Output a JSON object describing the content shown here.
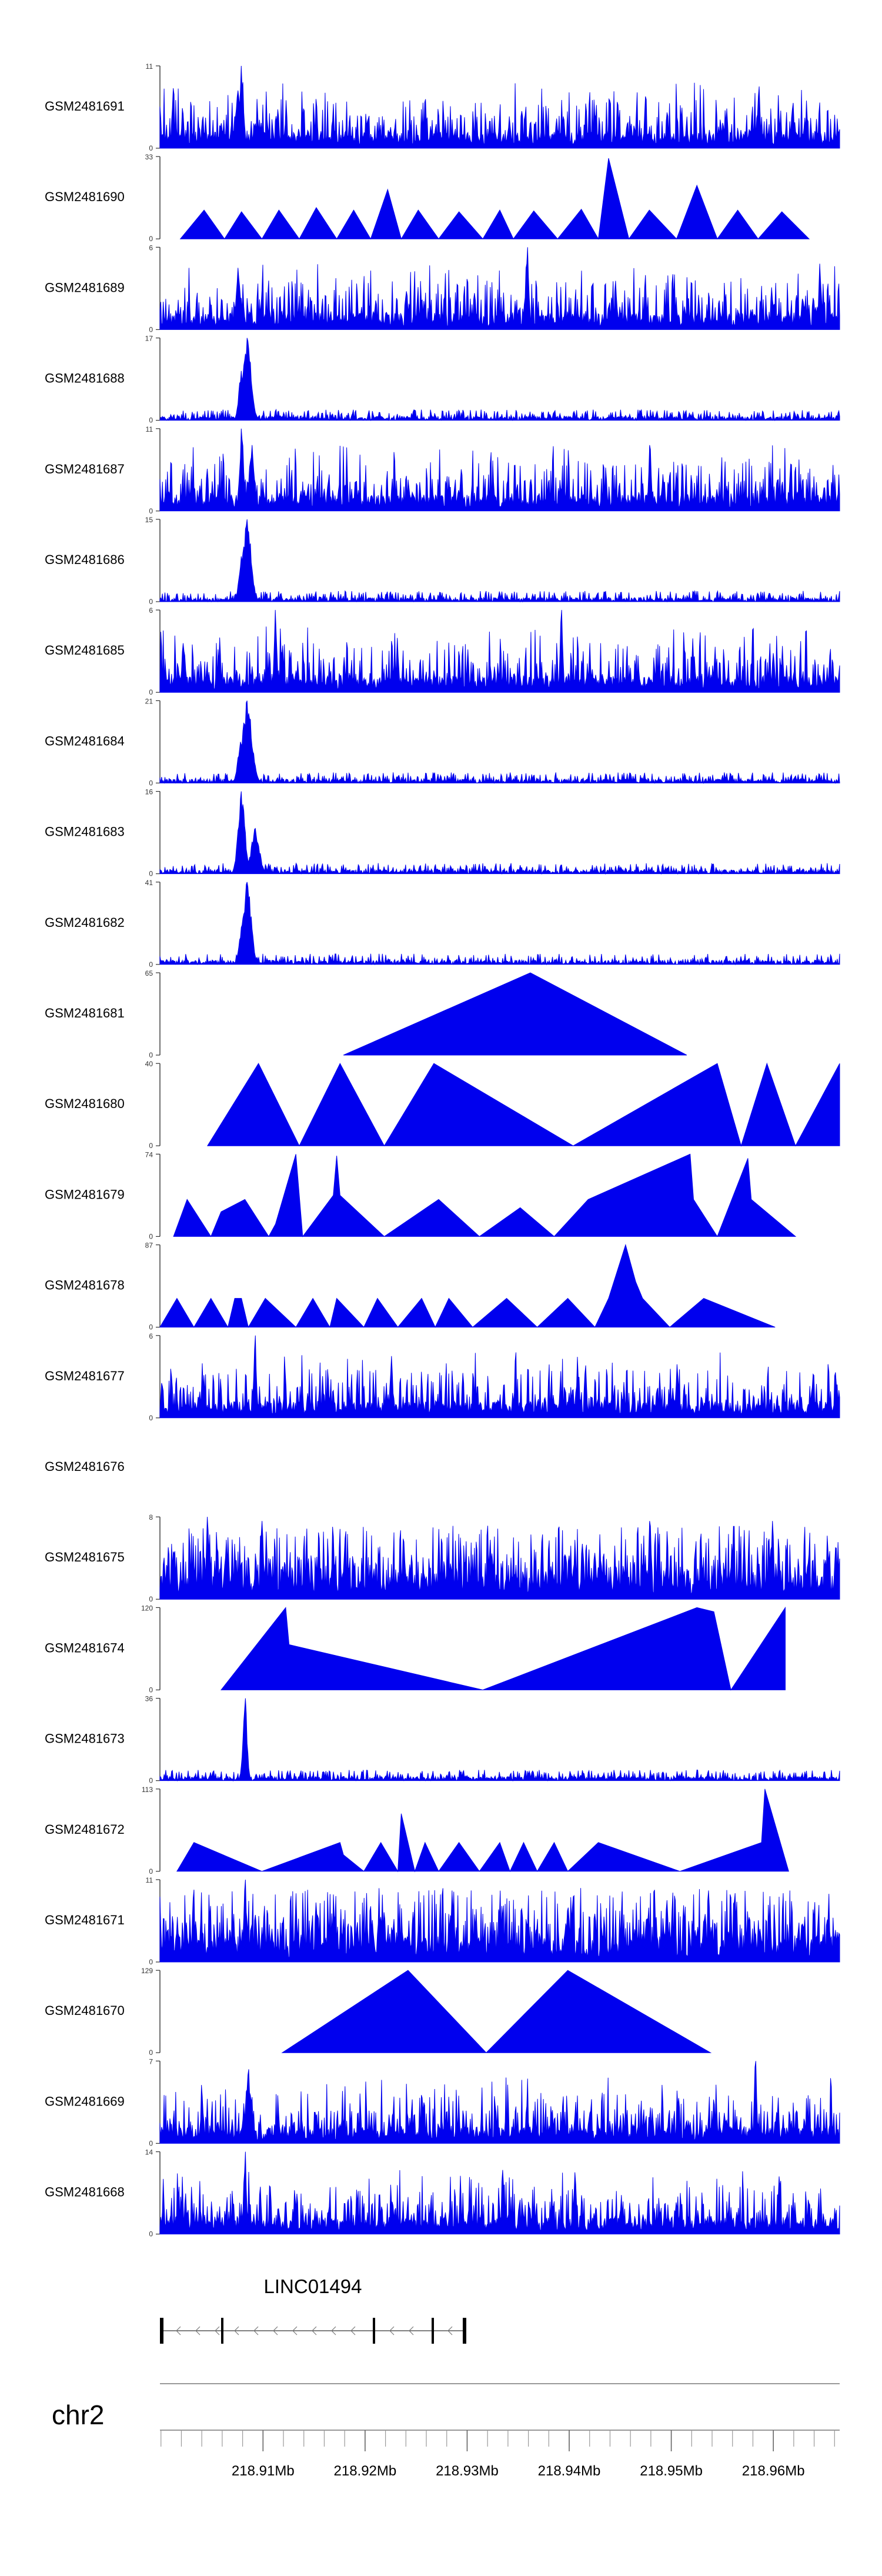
{
  "chart_data": {
    "type": "area",
    "genome": {
      "chromosome": "chr2",
      "gene": "LINC01494",
      "ticks": [
        "218.91Mb",
        "218.92Mb",
        "218.93Mb",
        "218.94Mb",
        "218.95Mb",
        "218.96Mb"
      ],
      "tick_values": [
        218.91,
        218.92,
        218.93,
        218.94,
        218.95,
        218.96
      ],
      "xlim": [
        218.8999,
        218.9665
      ]
    },
    "colors": {
      "fill": "#0000EE",
      "axis": "#333333",
      "label": "#000000",
      "ideogram": "#999999"
    },
    "tracks": [
      {
        "name": "GSM2481691",
        "ymax": "11",
        "ymin": "0",
        "kind": "dense",
        "seed": 11,
        "peaks": [
          {
            "x": 0.12,
            "h": 1.0,
            "w": 0.003
          },
          {
            "x": 0.115,
            "h": 0.7,
            "w": 0.004
          },
          {
            "x": 0.88,
            "h": 0.75,
            "w": 0.002
          },
          {
            "x": 0.93,
            "h": 0.55,
            "w": 0.002
          }
        ]
      },
      {
        "name": "GSM2481690",
        "ymax": "33",
        "ymin": "0",
        "kind": "tri",
        "x": [
          0.03,
          0.065,
          0.095,
          0.12,
          0.15,
          0.175,
          0.205,
          0.23,
          0.26,
          0.285,
          0.31,
          0.335,
          0.355,
          0.38,
          0.41,
          0.44,
          0.475,
          0.5,
          0.52,
          0.55,
          0.585,
          0.62,
          0.645,
          0.66,
          0.69,
          0.72,
          0.76,
          0.79,
          0.82,
          0.85,
          0.88,
          0.915,
          0.955
        ],
        "y": [
          0,
          0.35,
          0,
          0.33,
          0,
          0.35,
          0,
          0.38,
          0,
          0.35,
          0,
          0.6,
          0,
          0.35,
          0,
          0.33,
          0,
          0.35,
          0,
          0.34,
          0,
          0.36,
          0,
          0.98,
          0,
          0.35,
          0,
          0.65,
          0,
          0.35,
          0,
          0.33,
          0
        ]
      },
      {
        "name": "GSM2481689",
        "ymax": "6",
        "ymin": "0",
        "kind": "dense",
        "seed": 23,
        "peaks": [
          {
            "x": 0.54,
            "h": 1.0,
            "w": 0.002
          },
          {
            "x": 0.115,
            "h": 0.75,
            "w": 0.003
          },
          {
            "x": 0.97,
            "h": 0.8,
            "w": 0.002
          }
        ]
      },
      {
        "name": "GSM2481688",
        "ymax": "17",
        "ymin": "0",
        "kind": "sparse",
        "seed": 31,
        "peaks": [
          {
            "x": 0.128,
            "h": 1.0,
            "w": 0.006
          },
          {
            "x": 0.12,
            "h": 0.6,
            "w": 0.004
          }
        ]
      },
      {
        "name": "GSM2481687",
        "ymax": "11",
        "ymin": "0",
        "kind": "dense",
        "seed": 41,
        "peaks": [
          {
            "x": 0.12,
            "h": 1.0,
            "w": 0.003
          },
          {
            "x": 0.135,
            "h": 0.8,
            "w": 0.004
          },
          {
            "x": 0.72,
            "h": 0.8,
            "w": 0.002
          }
        ]
      },
      {
        "name": "GSM2481686",
        "ymax": "15",
        "ymin": "0",
        "kind": "sparse",
        "seed": 53,
        "peaks": [
          {
            "x": 0.128,
            "h": 1.0,
            "w": 0.006
          },
          {
            "x": 0.12,
            "h": 0.55,
            "w": 0.004
          }
        ]
      },
      {
        "name": "GSM2481685",
        "ymax": "6",
        "ymin": "0",
        "kind": "dense",
        "seed": 61,
        "peaks": [
          {
            "x": 0.17,
            "h": 1.0,
            "w": 0.002
          },
          {
            "x": 0.59,
            "h": 1.0,
            "w": 0.002
          },
          {
            "x": 0.035,
            "h": 0.5,
            "w": 0.003
          }
        ]
      },
      {
        "name": "GSM2481684",
        "ymax": "21",
        "ymin": "0",
        "kind": "sparse",
        "seed": 71,
        "peaks": [
          {
            "x": 0.128,
            "h": 1.0,
            "w": 0.007
          },
          {
            "x": 0.118,
            "h": 0.5,
            "w": 0.004
          }
        ]
      },
      {
        "name": "GSM2481683",
        "ymax": "16",
        "ymin": "0",
        "kind": "sparse",
        "seed": 83,
        "peaks": [
          {
            "x": 0.12,
            "h": 1.0,
            "w": 0.005
          },
          {
            "x": 0.14,
            "h": 0.55,
            "w": 0.006
          }
        ]
      },
      {
        "name": "GSM2481682",
        "ymax": "41",
        "ymin": "0",
        "kind": "sparse",
        "seed": 97,
        "peaks": [
          {
            "x": 0.128,
            "h": 1.0,
            "w": 0.006
          },
          {
            "x": 0.12,
            "h": 0.45,
            "w": 0.004
          }
        ]
      },
      {
        "name": "GSM2481681",
        "ymax": "65",
        "ymin": "0",
        "kind": "tri",
        "x": [
          0.27,
          0.545,
          0.775
        ],
        "y": [
          0,
          1.0,
          0
        ]
      },
      {
        "name": "GSM2481680",
        "ymax": "40",
        "ymin": "0",
        "kind": "tri",
        "x": [
          0.07,
          0.145,
          0.205,
          0.265,
          0.33,
          0.403,
          0.608,
          0.82,
          0.855,
          0.893,
          0.935,
          1.0
        ],
        "y": [
          0,
          1.0,
          0,
          1.0,
          0,
          1.0,
          0,
          1.0,
          0,
          1.0,
          0,
          1.0
        ]
      },
      {
        "name": "GSM2481679",
        "ymax": "74",
        "ymin": "0",
        "kind": "tri",
        "x": [
          0.02,
          0.04,
          0.075,
          0.09,
          0.125,
          0.16,
          0.17,
          0.2,
          0.21,
          0.255,
          0.26,
          0.265,
          0.33,
          0.41,
          0.47,
          0.53,
          0.58,
          0.63,
          0.78,
          0.785,
          0.82,
          0.865,
          0.87,
          0.935
        ],
        "y": [
          0,
          0.45,
          0,
          0.3,
          0.45,
          0,
          0.15,
          1.0,
          0,
          0.5,
          0.98,
          0.5,
          0,
          0.45,
          0,
          0.35,
          0,
          0.45,
          1.0,
          0.45,
          0,
          0.95,
          0.45,
          0
        ]
      },
      {
        "name": "GSM2481678",
        "ymax": "87",
        "ymin": "0",
        "kind": "tri",
        "x": [
          0.0,
          0.025,
          0.05,
          0.075,
          0.1,
          0.11,
          0.12,
          0.13,
          0.155,
          0.2,
          0.225,
          0.25,
          0.26,
          0.3,
          0.32,
          0.35,
          0.385,
          0.405,
          0.425,
          0.46,
          0.51,
          0.555,
          0.6,
          0.64,
          0.66,
          0.685,
          0.7,
          0.71,
          0.75,
          0.8,
          0.905
        ],
        "y": [
          0,
          0.35,
          0,
          0.35,
          0,
          0.35,
          0.35,
          0,
          0.35,
          0,
          0.35,
          0,
          0.35,
          0,
          0.35,
          0,
          0.35,
          0,
          0.35,
          0,
          0.35,
          0,
          0.35,
          0,
          0.35,
          1.0,
          0.55,
          0.35,
          0,
          0.35,
          0
        ]
      },
      {
        "name": "GSM2481677",
        "ymax": "6",
        "ymin": "0",
        "kind": "dense",
        "seed": 107,
        "peaks": [
          {
            "x": 0.14,
            "h": 1.0,
            "w": 0.002
          },
          {
            "x": 0.34,
            "h": 0.75,
            "w": 0.002
          },
          {
            "x": 0.76,
            "h": 0.65,
            "w": 0.002
          }
        ]
      },
      {
        "name": "GSM2481676",
        "ymax": "",
        "ymin": "",
        "kind": "empty"
      },
      {
        "name": "GSM2481675",
        "ymax": "8",
        "ymin": "0",
        "kind": "spiky",
        "seed": 113,
        "peaks": [
          {
            "x": 0.07,
            "h": 1.0,
            "w": 0.002
          },
          {
            "x": 0.15,
            "h": 0.95,
            "w": 0.002
          },
          {
            "x": 0.72,
            "h": 0.95,
            "w": 0.002
          },
          {
            "x": 0.9,
            "h": 0.95,
            "w": 0.002
          }
        ]
      },
      {
        "name": "GSM2481674",
        "ymax": "120",
        "ymin": "0",
        "kind": "tri",
        "x": [
          0.09,
          0.185,
          0.19,
          0.475,
          0.79,
          0.815,
          0.84,
          0.92
        ],
        "y": [
          0,
          1.0,
          0.55,
          0,
          1.0,
          0.95,
          0,
          1.0
        ]
      },
      {
        "name": "GSM2481673",
        "ymax": "36",
        "ymin": "0",
        "kind": "sparse",
        "seed": 127,
        "peaks": [
          {
            "x": 0.125,
            "h": 1.0,
            "w": 0.003
          }
        ]
      },
      {
        "name": "GSM2481672",
        "ymax": "113",
        "ymin": "0",
        "kind": "tri",
        "x": [
          0.025,
          0.05,
          0.15,
          0.265,
          0.27,
          0.3,
          0.325,
          0.35,
          0.355,
          0.375,
          0.39,
          0.41,
          0.44,
          0.47,
          0.5,
          0.515,
          0.535,
          0.555,
          0.58,
          0.6,
          0.645,
          0.765,
          0.885,
          0.89,
          0.925
        ],
        "y": [
          0,
          0.35,
          0,
          0.35,
          0.2,
          0,
          0.35,
          0,
          0.7,
          0,
          0.35,
          0,
          0.35,
          0,
          0.35,
          0,
          0.35,
          0,
          0.35,
          0,
          0.35,
          0,
          0.35,
          1.0,
          0
        ]
      },
      {
        "name": "GSM2481671",
        "ymax": "11",
        "ymin": "0",
        "kind": "spiky",
        "seed": 137,
        "peaks": [
          {
            "x": 0.125,
            "h": 1.0,
            "w": 0.002
          },
          {
            "x": 0.745,
            "h": 0.75,
            "w": 0.002
          },
          {
            "x": 0.2,
            "h": 0.7,
            "w": 0.002
          }
        ]
      },
      {
        "name": "GSM2481670",
        "ymax": "129",
        "ymin": "0",
        "kind": "tri",
        "x": [
          0.18,
          0.365,
          0.48,
          0.6,
          0.81
        ],
        "y": [
          0,
          1.0,
          0,
          1.0,
          0
        ]
      },
      {
        "name": "GSM2481669",
        "ymax": "7",
        "ymin": "0",
        "kind": "dense",
        "seed": 149,
        "peaks": [
          {
            "x": 0.875,
            "h": 1.0,
            "w": 0.002
          },
          {
            "x": 0.13,
            "h": 0.9,
            "w": 0.004
          }
        ]
      },
      {
        "name": "GSM2481668",
        "ymax": "14",
        "ymin": "0",
        "kind": "dense",
        "seed": 157,
        "peaks": [
          {
            "x": 0.125,
            "h": 1.0,
            "w": 0.002
          },
          {
            "x": 0.61,
            "h": 0.75,
            "w": 0.002
          },
          {
            "x": 0.91,
            "h": 0.7,
            "w": 0.002
          }
        ]
      }
    ]
  }
}
